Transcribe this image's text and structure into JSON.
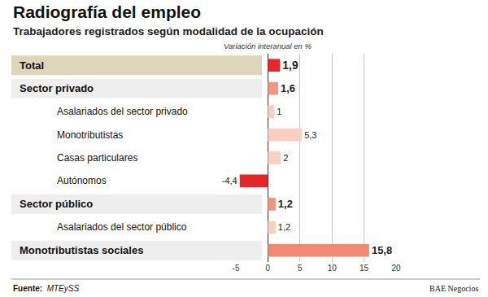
{
  "chart_data": {
    "type": "bar",
    "orientation": "horizontal",
    "title": "Radiografía del empleo",
    "subtitle": "Trabajadores registrados según modalidad de la ocupación",
    "xlabel": "Variación interanual en %",
    "categories": [
      "Total",
      "Sector privado",
      "Asalariados del sector privado",
      "Monotributistas",
      "Casas particulares",
      "Autónomos",
      "Sector público",
      "Asalariados del sector público",
      "Monotributistas sociales"
    ],
    "values": [
      1.9,
      1.6,
      1,
      5.3,
      2,
      -4.4,
      1.2,
      1.2,
      15.8
    ],
    "value_labels": [
      "1,9",
      "1,6",
      "1",
      "5,3",
      "2",
      "-4,4",
      "1,2",
      "1,2",
      "15,8"
    ],
    "colors": [
      "#e8262b",
      "#f2957e",
      "#f9cfc2",
      "#f9cfc2",
      "#f9cfc2",
      "#e3262b",
      "#f2957e",
      "#f9cfc2",
      "#f08a73"
    ],
    "xlim": [
      -5,
      20
    ],
    "xticks": [
      -5,
      0,
      5,
      10,
      15,
      20
    ],
    "grid": true,
    "data_labels": true,
    "source_label": "Fuente:",
    "source": "MTEySS",
    "credit": "BAE Negocios"
  }
}
